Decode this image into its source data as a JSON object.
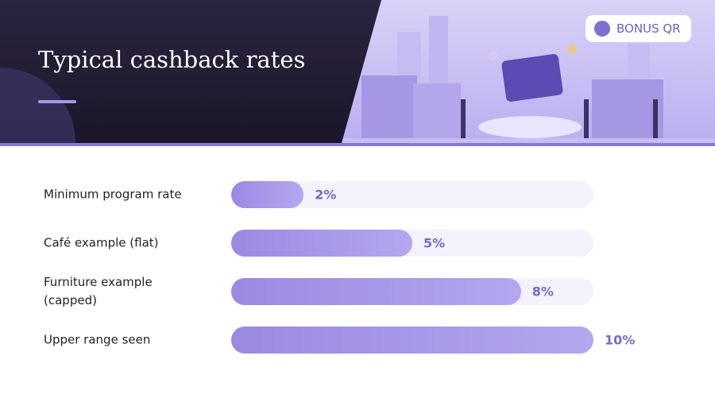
{
  "brand": "BONUS QR",
  "chart_data": {
    "type": "bar",
    "orientation": "horizontal",
    "title": "Typical cashback rates",
    "categories": [
      "Minimum program rate",
      "Café example (flat)",
      "Furniture example (capped)",
      "Upper range seen"
    ],
    "values": [
      2,
      5,
      8,
      10
    ],
    "value_labels": [
      "2%",
      "5%",
      "8%",
      "10%"
    ],
    "color": "#9b89e2",
    "xlim": [
      0,
      10
    ]
  }
}
